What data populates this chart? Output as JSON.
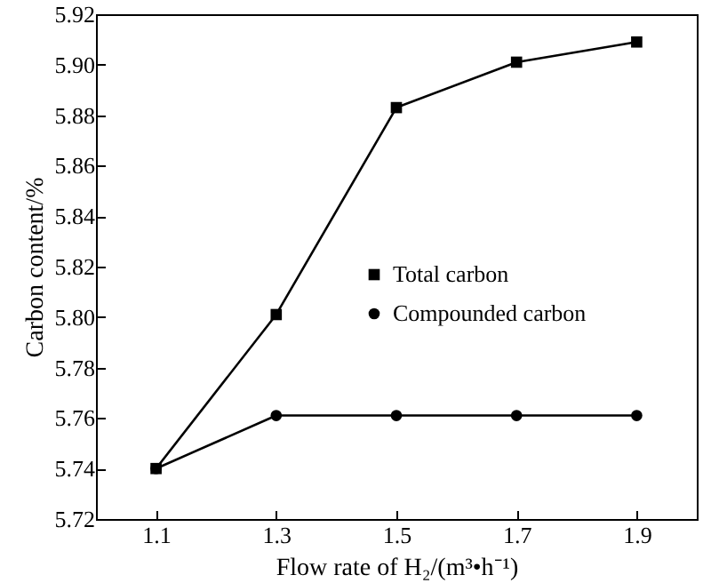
{
  "chart_data": {
    "type": "line",
    "xlabel": "Flow rate of H₂/(m³•h⁻¹)",
    "ylabel": "Carbon content/%",
    "x": [
      1.1,
      1.3,
      1.5,
      1.7,
      1.9
    ],
    "xlim": [
      1.0,
      2.0
    ],
    "xticks": [
      1.1,
      1.3,
      1.5,
      1.7,
      1.9
    ],
    "ylim": [
      5.72,
      5.92
    ],
    "yticks": [
      5.72,
      5.74,
      5.76,
      5.78,
      {
        "value": 5.8,
        "label": "5.80"
      },
      5.82,
      5.84,
      5.86,
      5.88,
      {
        "value": 5.9,
        "label": "5.90"
      },
      5.92
    ],
    "grid": false,
    "legend": "right",
    "series": [
      {
        "name": "Total carbon",
        "color": "#000000",
        "marker": "square",
        "values": [
          5.74,
          5.801,
          5.883,
          5.901,
          5.909
        ]
      },
      {
        "name": "Compounded carbon",
        "color": "#000000",
        "marker": "circle",
        "values": [
          5.74,
          5.761,
          5.761,
          5.761,
          5.761
        ]
      }
    ]
  }
}
